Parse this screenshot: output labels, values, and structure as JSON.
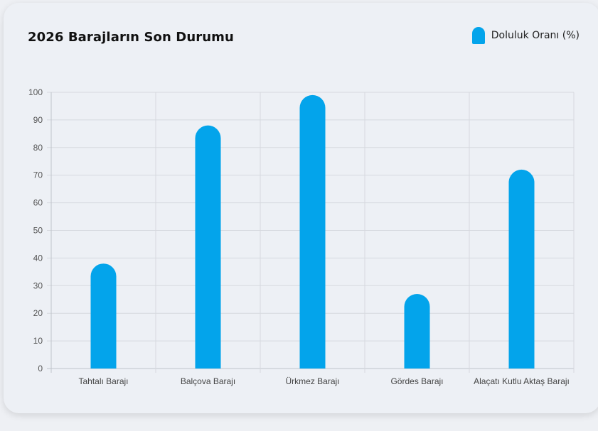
{
  "title": "2026 Barajların Son Durumu",
  "legend": {
    "label": "Doluluk Oranı (%)"
  },
  "colors": {
    "bar": "#03a4eb",
    "grid": "#d6d9df",
    "axis": "#bfc3ca"
  },
  "chart_data": {
    "type": "bar",
    "title": "2026 Barajların Son Durumu",
    "xlabel": "",
    "ylabel": "",
    "categories": [
      "Tahtalı Barajı",
      "Balçova Barajı",
      "Ürkmez Barajı",
      "Gördes Barajı",
      "Alaçatı Kutlu Aktaş Barajı"
    ],
    "series": [
      {
        "name": "Doluluk Oranı (%)",
        "values": [
          38,
          88,
          99,
          27,
          72
        ]
      }
    ],
    "ylim": [
      0,
      100
    ],
    "yticks": [
      "0",
      "10",
      "20",
      "30",
      "40",
      "50",
      "60",
      "70",
      "80",
      "90",
      "100"
    ],
    "grid": true,
    "legend_position": "top-right"
  }
}
